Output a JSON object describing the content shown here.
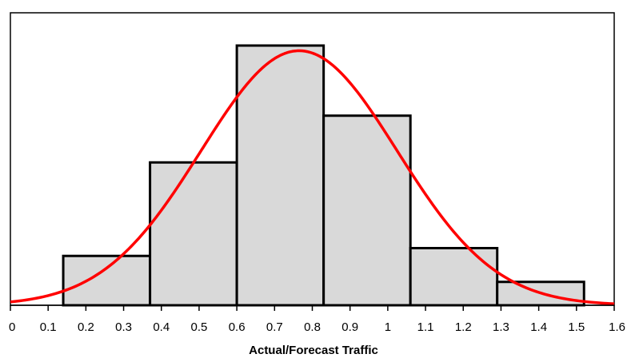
{
  "chart_data": {
    "type": "bar",
    "title": "",
    "xlabel": "Actual/Forecast Traffic",
    "ylabel": "",
    "xlim": [
      0,
      1.6
    ],
    "ylim": [
      0,
      1
    ],
    "x_ticks": [
      "0",
      "0.1",
      "0.2",
      "0.3",
      "0.4",
      "0.5",
      "0.6",
      "0.7",
      "0.8",
      "0.9",
      "1",
      "1.1",
      "1.2",
      "1.3",
      "1.4",
      "1.5",
      "1.6"
    ],
    "grid": false,
    "legend": "none",
    "histogram_bins": [
      {
        "x0": 0.14,
        "x1": 0.37,
        "value": 0.19
      },
      {
        "x0": 0.37,
        "x1": 0.6,
        "value": 0.55
      },
      {
        "x0": 0.6,
        "x1": 0.83,
        "value": 1.0
      },
      {
        "x0": 0.83,
        "x1": 1.06,
        "value": 0.73
      },
      {
        "x0": 1.06,
        "x1": 1.29,
        "value": 0.22
      },
      {
        "x0": 1.29,
        "x1": 1.52,
        "value": 0.09
      }
    ],
    "fitted_curve": {
      "kind": "normal",
      "mean": 0.765,
      "std": 0.26,
      "peak": 0.98
    },
    "colors": {
      "bar_fill": "#d9d9d9",
      "bar_stroke": "#000000",
      "curve": "#ff0000"
    }
  }
}
